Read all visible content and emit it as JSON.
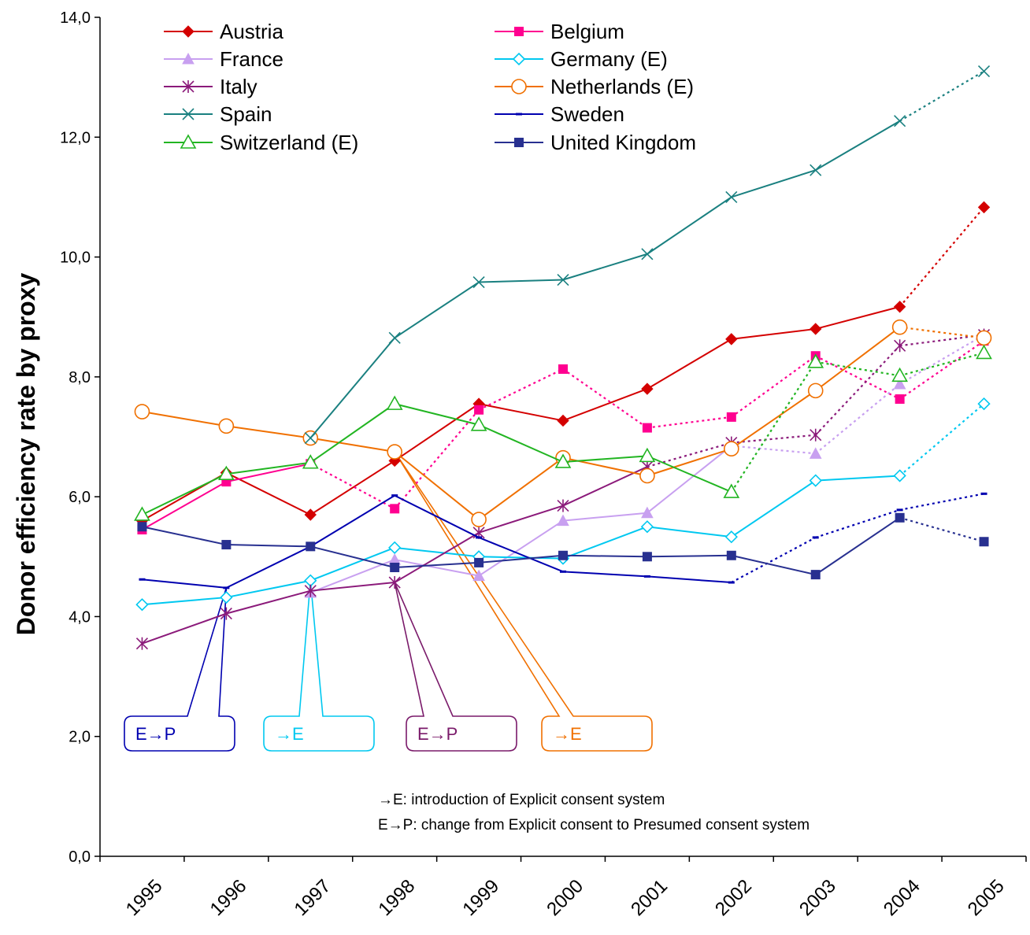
{
  "chart_data": {
    "type": "line",
    "ylabel": "Donor efficiency rate by proxy",
    "xlabel": "",
    "ylim": [
      0,
      14
    ],
    "yticks": [
      "0,0",
      "2,0",
      "4,0",
      "6,0",
      "8,0",
      "10,0",
      "12,0",
      "14,0"
    ],
    "categories": [
      "1995",
      "1996",
      "1997",
      "1998",
      "1999",
      "2000",
      "2001",
      "2002",
      "2003",
      "2004",
      "2005"
    ],
    "legend_position": "top-left",
    "grid": false,
    "series": [
      {
        "name": "Austria",
        "color": "#d40000",
        "marker": "diamond-filled",
        "values": [
          5.6,
          6.4,
          5.7,
          6.6,
          7.55,
          7.27,
          7.8,
          8.63,
          8.8,
          9.17,
          10.83
        ],
        "dotted_from": 9
      },
      {
        "name": "Belgium",
        "color": "#ff0090",
        "marker": "square-filled",
        "values": [
          5.45,
          6.25,
          6.55,
          5.8,
          7.45,
          8.13,
          7.15,
          7.33,
          8.35,
          7.63,
          8.6
        ],
        "dotted_from": 2
      },
      {
        "name": "France",
        "color": "#c8a0f0",
        "marker": "triangle-filled",
        "values": [
          null,
          null,
          4.4,
          4.95,
          4.68,
          5.6,
          5.73,
          6.85,
          6.72,
          7.88,
          8.7
        ],
        "dotted_from": 7
      },
      {
        "name": "Germany (E)",
        "color": "#00c8f0",
        "marker": "diamond-open",
        "values": [
          4.2,
          4.32,
          4.6,
          5.15,
          5.0,
          4.97,
          5.5,
          5.33,
          6.27,
          6.35,
          7.55
        ],
        "dotted_from": 9
      },
      {
        "name": "Italy",
        "color": "#8b1a7a",
        "marker": "asterisk",
        "values": [
          3.55,
          4.05,
          4.43,
          4.57,
          5.4,
          5.85,
          6.5,
          6.9,
          7.03,
          8.52,
          8.7
        ],
        "dotted_from": 6
      },
      {
        "name": "Netherlands (E)",
        "color": "#f07000",
        "marker": "circle-open",
        "values": [
          7.42,
          7.18,
          6.98,
          6.75,
          5.62,
          6.65,
          6.35,
          6.8,
          7.77,
          8.83,
          8.65
        ],
        "dotted_from": 9
      },
      {
        "name": "Spain",
        "color": "#1a8080",
        "marker": "x",
        "values": [
          null,
          null,
          6.98,
          8.65,
          9.58,
          9.62,
          10.05,
          11.0,
          11.45,
          12.27,
          13.1
        ],
        "dotted_from": 9
      },
      {
        "name": "Sweden",
        "color": "#0000b0",
        "marker": "dash",
        "values": [
          4.62,
          4.48,
          5.17,
          6.02,
          5.32,
          4.75,
          4.67,
          4.57,
          5.32,
          5.78,
          6.05
        ],
        "dotted_from": 7
      },
      {
        "name": "Switzerland (E)",
        "color": "#22b522",
        "marker": "triangle-open",
        "values": [
          5.7,
          6.38,
          6.57,
          7.55,
          7.2,
          6.58,
          6.68,
          6.08,
          8.25,
          8.02,
          8.4
        ],
        "dotted_from": 7
      },
      {
        "name": "United Kingdom",
        "color": "#283090",
        "marker": "square-navy",
        "values": [
          5.5,
          5.2,
          5.17,
          4.82,
          4.9,
          5.02,
          5.0,
          5.02,
          4.7,
          5.65,
          5.25
        ],
        "dotted_from": 9
      }
    ],
    "callouts": [
      {
        "label": "E→P",
        "color": "#0000b0"
      },
      {
        "label": "→E",
        "color": "#00c8f0"
      },
      {
        "label": "E→P",
        "color": "#7a1a6a"
      },
      {
        "label": "→E",
        "color": "#f07000"
      }
    ],
    "notes": [
      "→E: introduction of Explicit consent system",
      "E→P: change from Explicit consent to Presumed consent system"
    ]
  }
}
